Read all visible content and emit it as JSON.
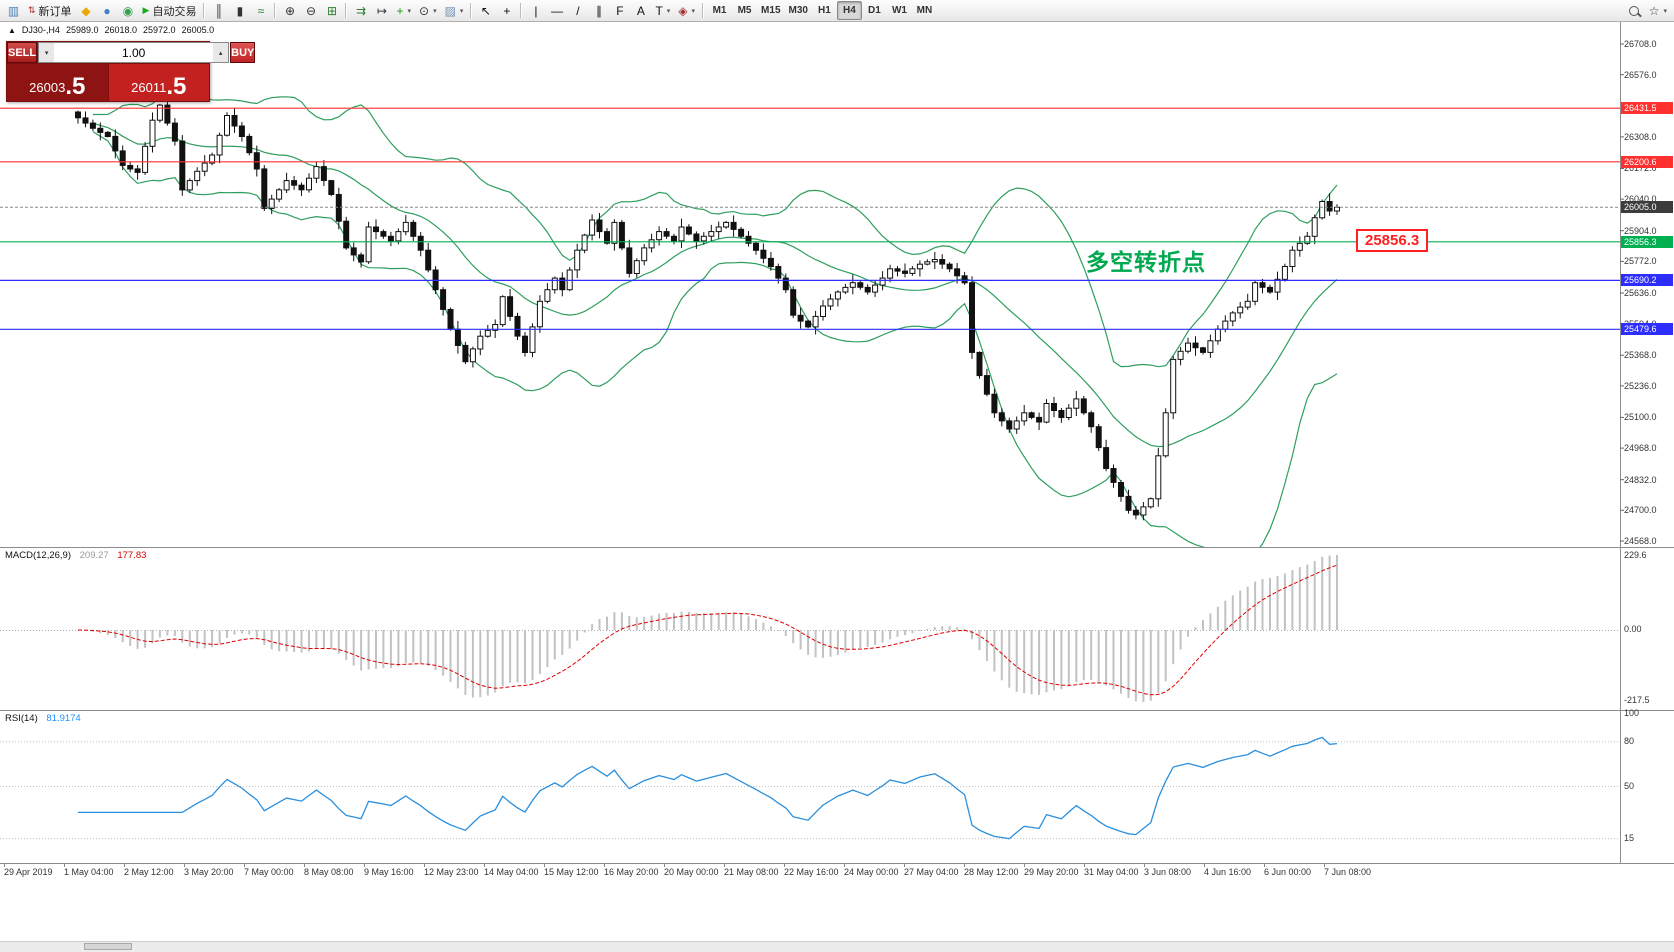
{
  "toolbar": {
    "active_timeframe": "H4",
    "items": [
      {
        "type": "icon",
        "name": "new-chart-icon",
        "glyph": "▥",
        "color": "#4a7fb5"
      },
      {
        "type": "labelbtn",
        "name": "new-order-button",
        "label": "新订单",
        "icon": "⇅",
        "icon_color": "#b03030"
      },
      {
        "type": "icon",
        "name": "metaquotes-icon",
        "glyph": "◆",
        "color": "#eaa800"
      },
      {
        "type": "icon",
        "name": "profile-icon",
        "glyph": "●",
        "color": "#3d7fc1"
      },
      {
        "type": "icon",
        "name": "community-icon",
        "glyph": "◉",
        "color": "#35a04a"
      },
      {
        "type": "labelbtn",
        "name": "autotrading-button",
        "label": "自动交易",
        "icon": "▶",
        "icon_color": "#21aa21"
      },
      {
        "type": "sep"
      },
      {
        "type": "icon",
        "name": "bar-chart-icon",
        "glyph": "║",
        "color": "#333333"
      },
      {
        "type": "icon",
        "name": "candlestick-chart-icon",
        "glyph": "▮",
        "color": "#333333"
      },
      {
        "type": "icon",
        "name": "line-chart-icon",
        "glyph": "≈",
        "color": "#2e7d32"
      },
      {
        "type": "sep"
      },
      {
        "type": "icon",
        "name": "zoom-in-icon",
        "glyph": "⊕",
        "color": "#333333"
      },
      {
        "type": "icon",
        "name": "zoom-out-icon",
        "glyph": "⊖",
        "color": "#333333"
      },
      {
        "type": "icon",
        "name": "tile-windows-icon",
        "glyph": "⊞",
        "color": "#2e7d32"
      },
      {
        "type": "sep"
      },
      {
        "type": "icon",
        "name": "auto-scroll-icon",
        "glyph": "⇉",
        "color": "#2e7d32"
      },
      {
        "type": "icon",
        "name": "chart-shift-icon",
        "glyph": "↦",
        "color": "#333333"
      },
      {
        "type": "dropdown",
        "name": "add-indicator-button",
        "glyph": "+",
        "color": "#14a014"
      },
      {
        "type": "dropdown",
        "name": "periods-button",
        "glyph": "⊙",
        "color": "#333333"
      },
      {
        "type": "dropdown",
        "name": "templates-button",
        "glyph": "▨",
        "color": "#6f8faf"
      },
      {
        "type": "sep"
      },
      {
        "type": "icon",
        "name": "cursor-icon",
        "glyph": "↖",
        "color": "#111111"
      },
      {
        "type": "icon",
        "name": "crosshair-icon",
        "glyph": "+",
        "color": "#111111"
      },
      {
        "type": "sep"
      },
      {
        "type": "icon",
        "name": "vertical-line-icon",
        "glyph": "|",
        "color": "#111111"
      },
      {
        "type": "icon",
        "name": "horizontal-line-icon",
        "glyph": "—",
        "color": "#111111"
      },
      {
        "type": "icon",
        "name": "trendline-icon",
        "glyph": "/",
        "color": "#111111"
      },
      {
        "type": "icon",
        "name": "channel-icon",
        "glyph": "∥",
        "color": "#111111"
      },
      {
        "type": "icon",
        "name": "fibonacci-icon",
        "glyph": "F",
        "color": "#111111"
      },
      {
        "type": "icon",
        "name": "text-icon",
        "glyph": "A",
        "color": "#111111"
      },
      {
        "type": "dropdown",
        "name": "text-label-icon",
        "glyph": "T",
        "color": "#111111"
      },
      {
        "type": "dropdown",
        "name": "arrows-icon",
        "glyph": "◈",
        "color": "#a03030"
      },
      {
        "type": "sep"
      },
      {
        "type": "tf",
        "name": "timeframe-m1",
        "label": "M1"
      },
      {
        "type": "tf",
        "name": "timeframe-m5",
        "label": "M5"
      },
      {
        "type": "tf",
        "name": "timeframe-m15",
        "label": "M15"
      },
      {
        "type": "tf",
        "name": "timeframe-m30",
        "label": "M30"
      },
      {
        "type": "tf",
        "name": "timeframe-h1",
        "label": "H1"
      },
      {
        "type": "tf",
        "name": "timeframe-h4",
        "label": "H4"
      },
      {
        "type": "tf",
        "name": "timeframe-d1",
        "label": "D1"
      },
      {
        "type": "tf",
        "name": "timeframe-w1",
        "label": "W1"
      },
      {
        "type": "tf",
        "name": "timeframe-mn",
        "label": "MN"
      },
      {
        "type": "spacer"
      },
      {
        "type": "search",
        "name": "search-button"
      },
      {
        "type": "dropdown",
        "name": "favorites-button",
        "glyph": "☆",
        "color": "#333333"
      }
    ]
  },
  "symbol_header": {
    "collapse_icon": "▲",
    "symbol": "DJ30-,H4",
    "open": "25989.0",
    "high": "26018.0",
    "low": "25972.0",
    "close": "26005.0"
  },
  "one_click": {
    "sell_label": "SELL",
    "buy_label": "BUY",
    "volume": "1.00",
    "spin_up": "▴",
    "spin_down": "▾",
    "sell_price_main": "26003",
    "sell_price_frac": ".5",
    "buy_price_main": "26011",
    "buy_price_frac": ".5"
  },
  "annotation": {
    "text": "多空转折点",
    "color": "#00a84f"
  },
  "price_flag": {
    "text": "25856.3",
    "color": "#ff1f1f"
  },
  "main_axis": {
    "labels": [
      "26708.0",
      "26576.0",
      "26308.0",
      "26172.0",
      "26040.0",
      "25904.0",
      "25772.0",
      "25636.0",
      "25504.0",
      "25368.0",
      "25236.0",
      "25100.0",
      "24968.0",
      "24832.0",
      "24700.0",
      "24568.0"
    ]
  },
  "hlines": [
    {
      "label": "26431.5",
      "price": 26431.5,
      "color": "#ff3030"
    },
    {
      "label": "26200.6",
      "price": 26200.6,
      "color": "#ff3030"
    },
    {
      "label": "25856.3",
      "price": 25856.3,
      "color": "#00b050"
    },
    {
      "label": "25690.2",
      "price": 25690.2,
      "color": "#2d2dff"
    },
    {
      "label": "25479.6",
      "price": 25479.6,
      "color": "#2d2dff"
    }
  ],
  "bid_line": {
    "label": "26005.0",
    "price": 26005.0,
    "bg": "#3c3c3c"
  },
  "macd_panel": {
    "title": "MACD(12,26,9)",
    "main_value": "209.27",
    "signal_value": "177.83",
    "scale_top": "229.6",
    "scale_zero": "0.00",
    "scale_bottom": "-217.5"
  },
  "rsi_panel": {
    "title": "RSI(14)",
    "value": "81.9174",
    "scale": [
      "100",
      "80",
      "50",
      "15"
    ],
    "levels": [
      80,
      50,
      15
    ]
  },
  "time_axis": {
    "labels": [
      "29 Apr 2019",
      "1 May 04:00",
      "2 May 12:00",
      "3 May 20:00",
      "7 May 00:00",
      "8 May 08:00",
      "9 May 16:00",
      "12 May 23:00",
      "14 May 04:00",
      "15 May 12:00",
      "16 May 20:00",
      "20 May 00:00",
      "21 May 08:00",
      "22 May 16:00",
      "24 May 00:00",
      "27 May 04:00",
      "28 May 12:00",
      "29 May 20:00",
      "31 May 04:00",
      "3 Jun 08:00",
      "4 Jun 16:00",
      "6 Jun 00:00",
      "7 Jun 08:00"
    ]
  },
  "chart_data": {
    "type": "candlestick",
    "symbol": "DJ30-",
    "timeframe": "H4",
    "ohlc_current": {
      "open": 25989.0,
      "high": 26018.0,
      "low": 25972.0,
      "close": 26005.0
    },
    "bars_visible": 170,
    "y_axis": {
      "min": 24542,
      "max": 26802
    },
    "close_path_anchors": [
      [
        0,
        26390
      ],
      [
        2,
        26345
      ],
      [
        4,
        26310
      ],
      [
        6,
        26185
      ],
      [
        8,
        26155
      ],
      [
        10,
        26380
      ],
      [
        11,
        26445
      ],
      [
        13,
        26290
      ],
      [
        14,
        26080
      ],
      [
        16,
        26160
      ],
      [
        18,
        26230
      ],
      [
        20,
        26400
      ],
      [
        22,
        26310
      ],
      [
        24,
        26170
      ],
      [
        25,
        26000
      ],
      [
        28,
        26120
      ],
      [
        30,
        26080
      ],
      [
        32,
        26180
      ],
      [
        34,
        26060
      ],
      [
        36,
        25830
      ],
      [
        38,
        25770
      ],
      [
        39,
        25920
      ],
      [
        42,
        25860
      ],
      [
        44,
        25940
      ],
      [
        46,
        25820
      ],
      [
        48,
        25650
      ],
      [
        50,
        25480
      ],
      [
        52,
        25340
      ],
      [
        54,
        25450
      ],
      [
        56,
        25500
      ],
      [
        57,
        25620
      ],
      [
        59,
        25450
      ],
      [
        60,
        25380
      ],
      [
        62,
        25600
      ],
      [
        64,
        25700
      ],
      [
        65,
        25650
      ],
      [
        67,
        25820
      ],
      [
        69,
        25950
      ],
      [
        71,
        25850
      ],
      [
        72,
        25940
      ],
      [
        74,
        25720
      ],
      [
        76,
        25830
      ],
      [
        78,
        25900
      ],
      [
        80,
        25860
      ],
      [
        81,
        25920
      ],
      [
        83,
        25860
      ],
      [
        85,
        25900
      ],
      [
        87,
        25940
      ],
      [
        89,
        25880
      ],
      [
        91,
        25820
      ],
      [
        93,
        25750
      ],
      [
        95,
        25650
      ],
      [
        96,
        25540
      ],
      [
        98,
        25490
      ],
      [
        100,
        25580
      ],
      [
        102,
        25640
      ],
      [
        104,
        25680
      ],
      [
        106,
        25640
      ],
      [
        108,
        25700
      ],
      [
        109,
        25740
      ],
      [
        111,
        25720
      ],
      [
        113,
        25760
      ],
      [
        115,
        25780
      ],
      [
        117,
        25740
      ],
      [
        119,
        25680
      ],
      [
        120,
        25380
      ],
      [
        121,
        25280
      ],
      [
        123,
        25120
      ],
      [
        125,
        25050
      ],
      [
        127,
        25120
      ],
      [
        129,
        25080
      ],
      [
        130,
        25160
      ],
      [
        132,
        25100
      ],
      [
        134,
        25180
      ],
      [
        136,
        25060
      ],
      [
        138,
        24880
      ],
      [
        139,
        24820
      ],
      [
        141,
        24700
      ],
      [
        142,
        24680
      ],
      [
        144,
        24750
      ],
      [
        146,
        25120
      ],
      [
        147,
        25350
      ],
      [
        149,
        25420
      ],
      [
        151,
        25380
      ],
      [
        153,
        25480
      ],
      [
        155,
        25550
      ],
      [
        157,
        25600
      ],
      [
        158,
        25680
      ],
      [
        160,
        25640
      ],
      [
        162,
        25750
      ],
      [
        163,
        25820
      ],
      [
        165,
        25880
      ],
      [
        166,
        25960
      ],
      [
        167,
        26030
      ],
      [
        168,
        25989
      ],
      [
        169,
        26005
      ]
    ],
    "overlays": {
      "bollinger_bands": {
        "period": 20,
        "deviation": 2,
        "color": "#2e9e5e"
      }
    },
    "horizontal_levels": [
      26431.5,
      26200.6,
      25856.3,
      25690.2,
      25479.6
    ],
    "macd": {
      "fast": 12,
      "slow": 26,
      "signal": 9,
      "current_main": 209.27,
      "current_signal": 177.83,
      "scale": {
        "max": 229.6,
        "min": -217.5
      }
    },
    "rsi": {
      "period": 14,
      "current": 81.9174,
      "scale_levels": [
        100,
        80,
        50,
        15
      ]
    }
  }
}
